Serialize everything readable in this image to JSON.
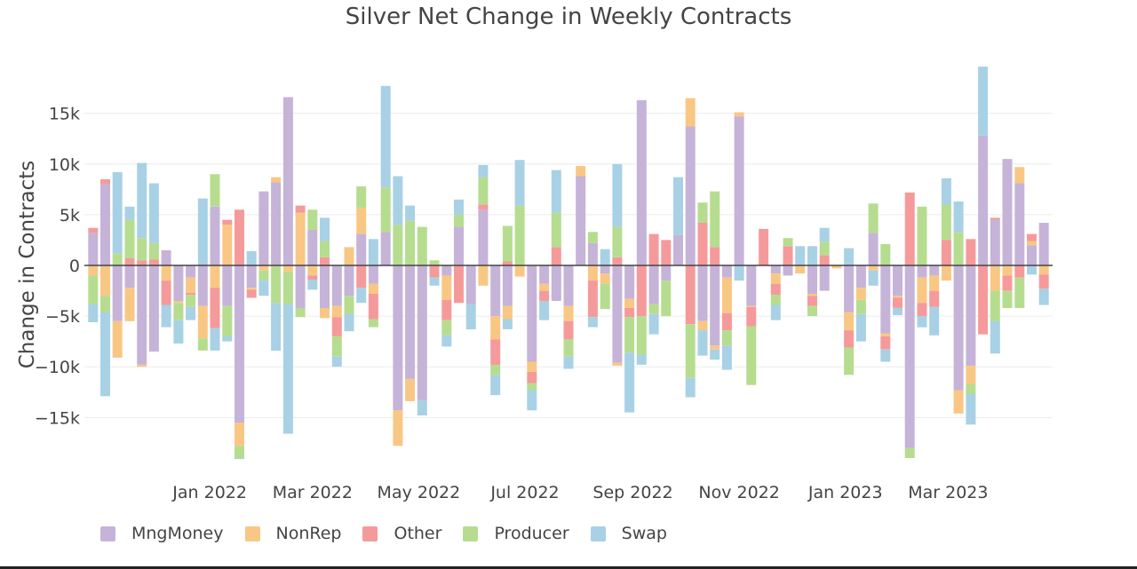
{
  "chart_data": {
    "type": "bar",
    "stacked": "relative",
    "title": "Silver Net Change in Weekly Contracts",
    "ylabel": "Change in Contracts",
    "xlabel": "",
    "ylim": [
      -19000,
      19000
    ],
    "yticks": [
      {
        "value": 15000,
        "label": "15k"
      },
      {
        "value": 10000,
        "label": "10k"
      },
      {
        "value": 5000,
        "label": "5k"
      },
      {
        "value": 0,
        "label": "0"
      },
      {
        "value": -5000,
        "label": "−5k"
      },
      {
        "value": -10000,
        "label": "−10k"
      },
      {
        "value": -15000,
        "label": "−15k"
      }
    ],
    "xticks": [
      {
        "date": "2022-01-01",
        "label": "Jan 2022"
      },
      {
        "date": "2022-03-01",
        "label": "Mar 2022"
      },
      {
        "date": "2022-05-01",
        "label": "May 2022"
      },
      {
        "date": "2022-07-01",
        "label": "Jul 2022"
      },
      {
        "date": "2022-09-01",
        "label": "Sep 2022"
      },
      {
        "date": "2022-11-01",
        "label": "Nov 2022"
      },
      {
        "date": "2023-01-01",
        "label": "Jan 2023"
      },
      {
        "date": "2023-03-01",
        "label": "Mar 2023"
      }
    ],
    "x": [
      "2021-10-26",
      "2021-11-02",
      "2021-11-09",
      "2021-11-16",
      "2021-11-23",
      "2021-11-30",
      "2021-12-07",
      "2021-12-14",
      "2021-12-21",
      "2021-12-28",
      "2022-01-04",
      "2022-01-11",
      "2022-01-18",
      "2022-01-25",
      "2022-02-01",
      "2022-02-08",
      "2022-02-15",
      "2022-02-22",
      "2022-03-01",
      "2022-03-08",
      "2022-03-15",
      "2022-03-22",
      "2022-03-29",
      "2022-04-05",
      "2022-04-12",
      "2022-04-19",
      "2022-04-26",
      "2022-05-03",
      "2022-05-10",
      "2022-05-17",
      "2022-05-24",
      "2022-05-31",
      "2022-06-07",
      "2022-06-14",
      "2022-06-21",
      "2022-06-28",
      "2022-07-05",
      "2022-07-12",
      "2022-07-19",
      "2022-07-26",
      "2022-08-02",
      "2022-08-09",
      "2022-08-16",
      "2022-08-23",
      "2022-08-30",
      "2022-09-06",
      "2022-09-13",
      "2022-09-20",
      "2022-09-27",
      "2022-10-04",
      "2022-10-11",
      "2022-10-18",
      "2022-10-25",
      "2022-11-01",
      "2022-11-08",
      "2022-11-15",
      "2022-11-22",
      "2022-11-29",
      "2022-12-06",
      "2022-12-13",
      "2022-12-20",
      "2022-12-27",
      "2023-01-03",
      "2023-01-10",
      "2023-01-17",
      "2023-01-24",
      "2023-01-31",
      "2023-02-07",
      "2023-02-14",
      "2023-02-21",
      "2023-02-28",
      "2023-03-07",
      "2023-03-14",
      "2023-03-21",
      "2023-03-28",
      "2023-04-04",
      "2023-04-11",
      "2023-04-18",
      "2023-04-25"
    ],
    "series": [
      {
        "name": "MngMoney",
        "color": "#c6b3d8",
        "values": [
          3200,
          8000,
          -5500,
          -2200,
          -9800,
          -8500,
          1500,
          -3500,
          -1200,
          -4000,
          5800,
          -4000,
          -15500,
          -2200,
          7300,
          8200,
          16600,
          -4200,
          3500,
          -4200,
          -4000,
          -3000,
          3100,
          -1800,
          3300,
          -14300,
          -11200,
          -13300,
          0,
          -1000,
          3800,
          -3800,
          5500,
          -5000,
          -4000,
          0,
          -9500,
          -1800,
          -3500,
          -4000,
          8800,
          2200,
          -800,
          -9600,
          -3300,
          16300,
          -3800,
          -1500,
          3000,
          13700,
          -5500,
          -7900,
          -1200,
          14700,
          -4000,
          0,
          -800,
          -1000,
          0,
          -2800,
          -2500,
          0,
          -4600,
          -2200,
          3200,
          -6700,
          -3000,
          -18000,
          -1200,
          -1000,
          0,
          -12300,
          -9900,
          12800,
          4500,
          10500,
          8100,
          2000,
          4200
        ]
      },
      {
        "name": "NonRep",
        "color": "#f9c784",
        "values": [
          -1000,
          -3000,
          -3600,
          -3300,
          -200,
          0,
          -1500,
          -200,
          -1500,
          -3200,
          -2200,
          4000,
          -2300,
          -200,
          -500,
          500,
          -600,
          5200,
          -1000,
          -1000,
          -1100,
          1800,
          2600,
          -1000,
          0,
          -3500,
          -2200,
          0,
          0,
          -2400,
          0,
          0,
          -2000,
          -2300,
          -1300,
          -1100,
          -1000,
          -700,
          0,
          -1500,
          1000,
          -1500,
          -1000,
          -300,
          -900,
          0,
          0,
          0,
          0,
          2800,
          -900,
          -400,
          -3500,
          400,
          -100,
          0,
          -1000,
          0,
          -800,
          -200,
          0,
          -300,
          -1800,
          -1200,
          -500,
          -300,
          -200,
          0,
          -2500,
          -1500,
          -1500,
          -2300,
          -1800,
          0,
          -2500,
          -1000,
          1600,
          400,
          -900
        ]
      },
      {
        "name": "Other",
        "color": "#f59a9b",
        "values": [
          500,
          500,
          0,
          700,
          500,
          600,
          -2400,
          0,
          -200,
          0,
          -4000,
          500,
          5500,
          -800,
          0,
          0,
          0,
          700,
          -400,
          800,
          -1900,
          0,
          -2200,
          -2500,
          0,
          0,
          0,
          0,
          -1200,
          -2000,
          -3700,
          0,
          500,
          -2500,
          400,
          0,
          -1100,
          -1000,
          1800,
          -1800,
          0,
          -3600,
          0,
          800,
          -900,
          -5000,
          3100,
          2500,
          0,
          -5800,
          4200,
          1800,
          -1700,
          0,
          -1900,
          3600,
          -1100,
          1900,
          0,
          -1000,
          1000,
          0,
          -1700,
          0,
          0,
          -1300,
          -1000,
          7200,
          -1300,
          -1600,
          2500,
          0,
          2600,
          -6800,
          200,
          -1500,
          -1200,
          700,
          -1400
        ]
      },
      {
        "name": "Producer",
        "color": "#b6dd8f",
        "values": [
          -2800,
          -1600,
          1200,
          3800,
          2200,
          1600,
          0,
          -1700,
          -1200,
          -1200,
          3200,
          -3000,
          -1200,
          0,
          -1000,
          -3700,
          -3200,
          -900,
          2000,
          1600,
          -2000,
          -1800,
          2100,
          -800,
          4400,
          4000,
          4400,
          3800,
          500,
          -1500,
          1200,
          0,
          2700,
          -1000,
          3500,
          5900,
          -700,
          0,
          3400,
          -1700,
          0,
          1100,
          -2500,
          3000,
          -3500,
          -3800,
          -1000,
          -3500,
          0,
          -5300,
          2000,
          5500,
          -1500,
          0,
          -5800,
          0,
          -1000,
          800,
          0,
          -1000,
          1300,
          0,
          -2700,
          -1400,
          2900,
          2100,
          0,
          -1000,
          5800,
          0,
          3500,
          3300,
          -1000,
          0,
          -3000,
          -1700,
          -3000,
          0,
          0
        ]
      },
      {
        "name": "Swap",
        "color": "#a8d1e5",
        "values": [
          -1800,
          -8300,
          8000,
          1300,
          7400,
          5900,
          -2200,
          -2300,
          -1300,
          6600,
          -2200,
          -500,
          -100,
          1400,
          -1500,
          -4700,
          -12800,
          0,
          -1000,
          2300,
          -1000,
          -1700,
          -1500,
          2600,
          10000,
          4800,
          1500,
          -1500,
          -800,
          -1100,
          1500,
          -2500,
          1200,
          -2000,
          -1000,
          4500,
          -2000,
          -1900,
          4200,
          -1200,
          0,
          -1000,
          1600,
          6200,
          -5900,
          -1000,
          -2000,
          0,
          5700,
          -1900,
          -2500,
          -1000,
          -2400,
          -1500,
          0,
          0,
          -1500,
          0,
          1900,
          1900,
          1400,
          0,
          1700,
          -2700,
          -1500,
          -1200,
          -700,
          0,
          -1100,
          -2800,
          2600,
          3000,
          -3000,
          6800,
          -3200,
          0,
          0,
          -900,
          -1600
        ]
      }
    ]
  }
}
